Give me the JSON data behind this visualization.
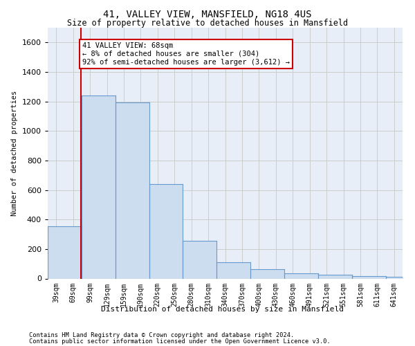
{
  "title": "41, VALLEY VIEW, MANSFIELD, NG18 4US",
  "subtitle": "Size of property relative to detached houses in Mansfield",
  "xlabel": "Distribution of detached houses by size in Mansfield",
  "ylabel": "Number of detached properties",
  "footer_line1": "Contains HM Land Registry data © Crown copyright and database right 2024.",
  "footer_line2": "Contains public sector information licensed under the Open Government Licence v3.0.",
  "annotation_line1": "41 VALLEY VIEW: 68sqm",
  "annotation_line2": "← 8% of detached houses are smaller (304)",
  "annotation_line3": "92% of semi-detached houses are larger (3,612) →",
  "bar_color": "#ccddf0",
  "bar_edge_color": "#6699cc",
  "marker_line_color": "#cc0000",
  "annotation_box_color": "#ffffff",
  "annotation_box_edge_color": "#cc0000",
  "ylim": [
    0,
    1700
  ],
  "yticks": [
    0,
    200,
    400,
    600,
    800,
    1000,
    1200,
    1400,
    1600
  ],
  "categories": [
    "39sqm",
    "69sqm",
    "99sqm",
    "129sqm",
    "159sqm",
    "190sqm",
    "220sqm",
    "250sqm",
    "280sqm",
    "310sqm",
    "340sqm",
    "370sqm",
    "400sqm",
    "430sqm",
    "460sqm",
    "491sqm",
    "521sqm",
    "551sqm",
    "581sqm",
    "611sqm",
    "641sqm"
  ],
  "bar_values": [
    355,
    1240,
    1195,
    640,
    255,
    110,
    65,
    35,
    25,
    18,
    10
  ],
  "background_color": "#ffffff",
  "grid_color": "#cccccc",
  "ax_bg_color": "#e8eef8"
}
